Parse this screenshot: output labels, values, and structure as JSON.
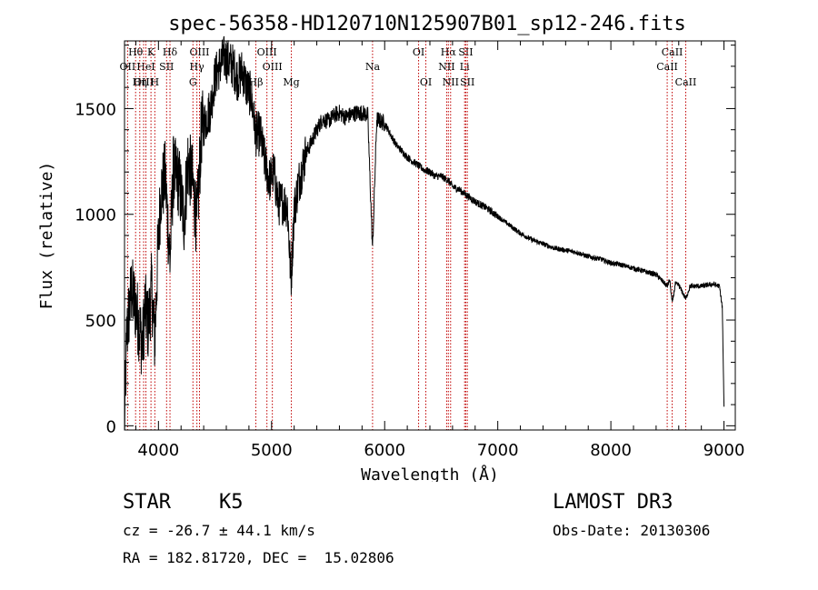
{
  "chart_data": {
    "type": "line",
    "title": "spec-56358-HD120710N125907B01_sp12-246.fits",
    "xlabel": "Wavelength (Å)",
    "ylabel": "Flux (relative)",
    "xlim": [
      3700,
      9100
    ],
    "ylim": [
      -20,
      1820
    ],
    "x_ticks": [
      4000,
      5000,
      6000,
      7000,
      8000,
      9000
    ],
    "y_ticks": [
      0,
      500,
      1000,
      1500
    ],
    "grid": false,
    "spectrum_anchors": [
      [
        3700,
        5
      ],
      [
        3720,
        430
      ],
      [
        3760,
        640
      ],
      [
        3800,
        560
      ],
      [
        3830,
        470
      ],
      [
        3860,
        380
      ],
      [
        3880,
        560
      ],
      [
        3910,
        470
      ],
      [
        3940,
        650
      ],
      [
        3968,
        400
      ],
      [
        3990,
        760
      ],
      [
        4020,
        1100
      ],
      [
        4060,
        1180
      ],
      [
        4102,
        780
      ],
      [
        4130,
        1200
      ],
      [
        4180,
        1160
      ],
      [
        4226,
        980
      ],
      [
        4260,
        1250
      ],
      [
        4300,
        1160
      ],
      [
        4340,
        950
      ],
      [
        4380,
        1400
      ],
      [
        4420,
        1450
      ],
      [
        4460,
        1500
      ],
      [
        4500,
        1650
      ],
      [
        4540,
        1700
      ],
      [
        4580,
        1740
      ],
      [
        4620,
        1720
      ],
      [
        4660,
        1700
      ],
      [
        4700,
        1640
      ],
      [
        4740,
        1680
      ],
      [
        4780,
        1600
      ],
      [
        4820,
        1560
      ],
      [
        4861,
        1380
      ],
      [
        4900,
        1380
      ],
      [
        4940,
        1250
      ],
      [
        4980,
        1160
      ],
      [
        5020,
        1200
      ],
      [
        5060,
        1050
      ],
      [
        5100,
        1060
      ],
      [
        5140,
        1040
      ],
      [
        5172,
        680
      ],
      [
        5200,
        1020
      ],
      [
        5240,
        1150
      ],
      [
        5300,
        1280
      ],
      [
        5350,
        1340
      ],
      [
        5400,
        1400
      ],
      [
        5450,
        1450
      ],
      [
        5500,
        1440
      ],
      [
        5560,
        1470
      ],
      [
        5600,
        1480
      ],
      [
        5650,
        1460
      ],
      [
        5700,
        1470
      ],
      [
        5750,
        1480
      ],
      [
        5800,
        1480
      ],
      [
        5850,
        1470
      ],
      [
        5893,
        830
      ],
      [
        5930,
        1450
      ],
      [
        6000,
        1430
      ],
      [
        6050,
        1380
      ],
      [
        6100,
        1330
      ],
      [
        6150,
        1300
      ],
      [
        6200,
        1270
      ],
      [
        6250,
        1250
      ],
      [
        6300,
        1230
      ],
      [
        6350,
        1210
      ],
      [
        6400,
        1200
      ],
      [
        6450,
        1180
      ],
      [
        6500,
        1180
      ],
      [
        6563,
        1160
      ],
      [
        6600,
        1130
      ],
      [
        6650,
        1120
      ],
      [
        6700,
        1100
      ],
      [
        6750,
        1080
      ],
      [
        6800,
        1060
      ],
      [
        6900,
        1030
      ],
      [
        7000,
        990
      ],
      [
        7100,
        950
      ],
      [
        7200,
        910
      ],
      [
        7300,
        880
      ],
      [
        7400,
        860
      ],
      [
        7500,
        840
      ],
      [
        7600,
        830
      ],
      [
        7700,
        820
      ],
      [
        7800,
        800
      ],
      [
        7900,
        790
      ],
      [
        8000,
        770
      ],
      [
        8100,
        760
      ],
      [
        8200,
        745
      ],
      [
        8300,
        730
      ],
      [
        8400,
        715
      ],
      [
        8498,
        660
      ],
      [
        8520,
        690
      ],
      [
        8542,
        580
      ],
      [
        8570,
        670
      ],
      [
        8600,
        665
      ],
      [
        8662,
        600
      ],
      [
        8700,
        660
      ],
      [
        8800,
        660
      ],
      [
        8900,
        670
      ],
      [
        8960,
        660
      ],
      [
        8985,
        560
      ],
      [
        9000,
        90
      ]
    ],
    "line_markers": [
      {
        "name": "Hθ",
        "x": 3798,
        "row": 0
      },
      {
        "name": "K",
        "x": 3934,
        "row": 0
      },
      {
        "name": "Hδ",
        "x": 4102,
        "row": 0
      },
      {
        "name": "OIII",
        "x": 4363,
        "row": 0
      },
      {
        "name": "OIII",
        "x": 4959,
        "row": 0
      },
      {
        "name": "OI",
        "x": 6300,
        "row": 0
      },
      {
        "name": "Hα",
        "x": 6563,
        "row": 0
      },
      {
        "name": "SII",
        "x": 6717,
        "row": 0
      },
      {
        "name": "CaII",
        "x": 8542,
        "row": 0
      },
      {
        "name": "OII",
        "x": 3727,
        "row": 1
      },
      {
        "name": "HeI",
        "x": 3889,
        "row": 1
      },
      {
        "name": "SII",
        "x": 4072,
        "row": 1
      },
      {
        "name": "Hγ",
        "x": 4340,
        "row": 1
      },
      {
        "name": "OIII",
        "x": 5007,
        "row": 1
      },
      {
        "name": "Na",
        "x": 5893,
        "row": 1
      },
      {
        "name": "NII",
        "x": 6548,
        "row": 1
      },
      {
        "name": "Li",
        "x": 6707,
        "row": 1
      },
      {
        "name": "CaII",
        "x": 8498,
        "row": 1
      },
      {
        "name": "OIII",
        "x": 3869,
        "row": 2
      },
      {
        "name": "Hη",
        "x": 3835,
        "row": 2
      },
      {
        "name": "H",
        "x": 3968,
        "row": 2
      },
      {
        "name": "G",
        "x": 4305,
        "row": 2
      },
      {
        "name": "Hβ",
        "x": 4861,
        "row": 2
      },
      {
        "name": "Mg",
        "x": 5175,
        "row": 2
      },
      {
        "name": "OI",
        "x": 6364,
        "row": 2
      },
      {
        "name": "NII",
        "x": 6583,
        "row": 2
      },
      {
        "name": "SII",
        "x": 6731,
        "row": 2
      },
      {
        "name": "CaII",
        "x": 8662,
        "row": 2
      }
    ]
  },
  "info": {
    "object_class": "STAR",
    "subclass": "K5",
    "survey": "LAMOST DR3",
    "redshift": "cz = -26.7 ± 44.1 km/s",
    "obs_date": "Obs-Date: 20130306",
    "coords": "RA = 182.81720, DEC =  15.02806"
  }
}
